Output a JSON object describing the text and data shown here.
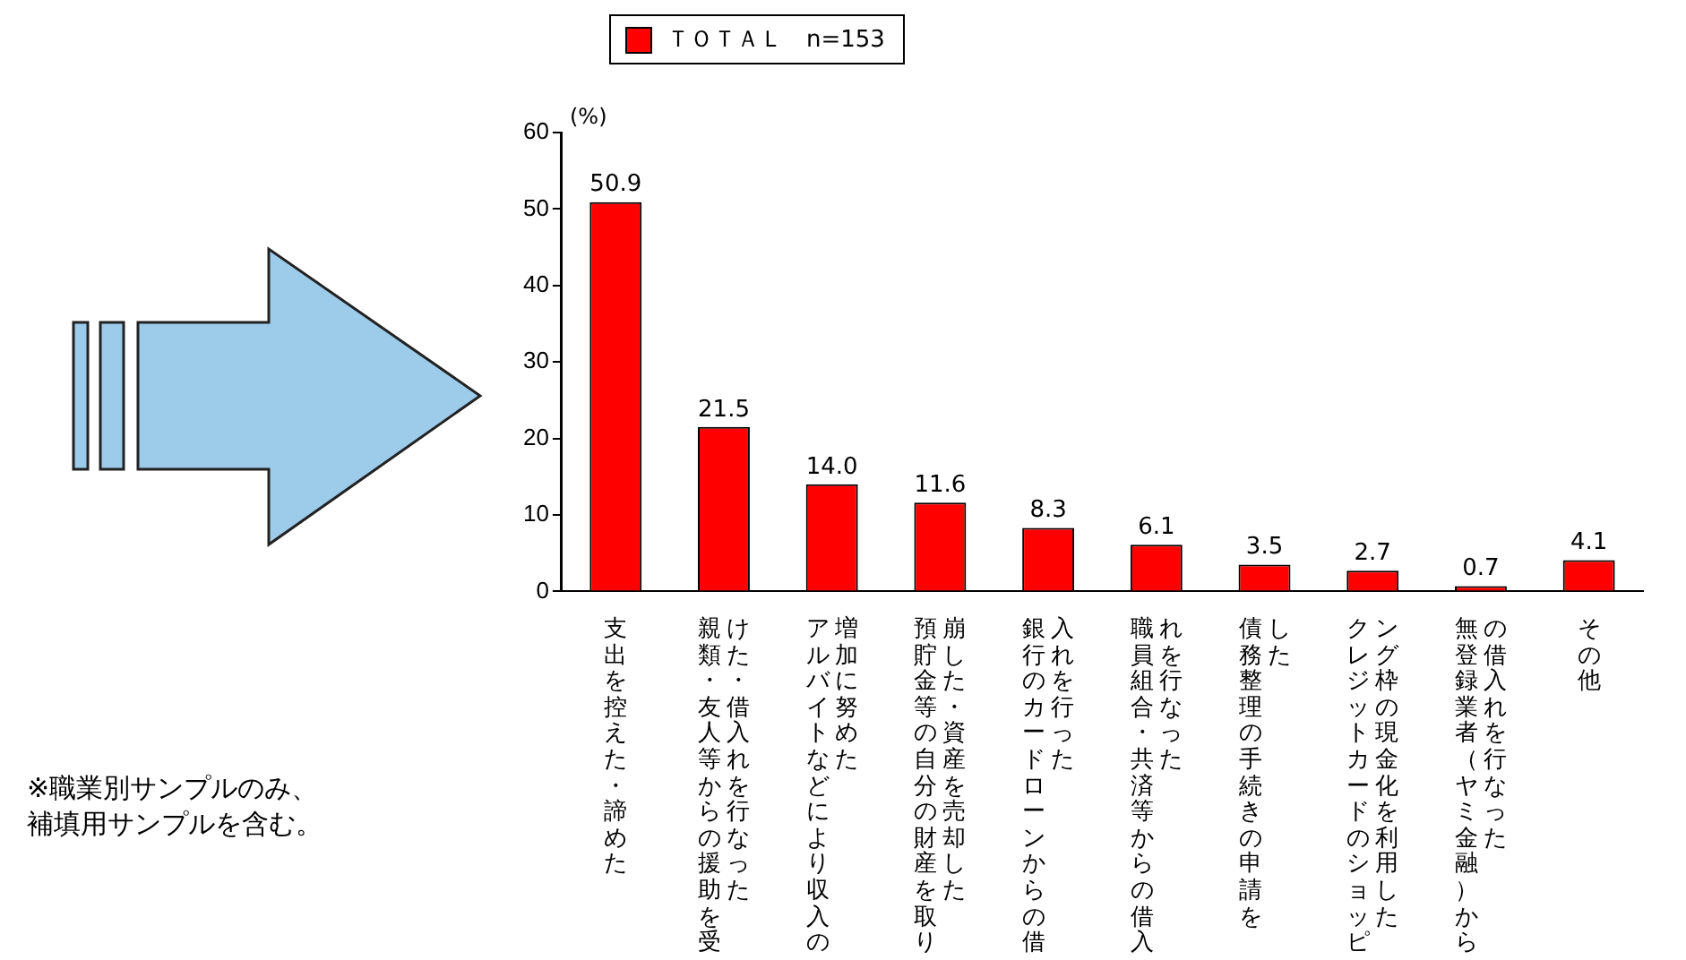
{
  "chart_data": {
    "type": "bar",
    "ylabel": "(%)",
    "categories": [
      "支出を控えた・諦めた",
      "親類・友人等からの援助を受けた・借入れを行なった",
      "アルバイトなどにより収入の増加に努めた",
      "預貯金等の自分の財産を取り崩した・資産を売却した",
      "銀行のカードローンからの借入れを行った",
      "職員組合・共済等からの借入れを行なった",
      "債務整理の手続きの申請をした",
      "クレジットカードのショッピング枠の現金化を利用した",
      "無登録業者（ヤミ金融）からの借入れを行なった",
      "その他"
    ],
    "series": [
      {
        "name": "ＴＯＴＡＬ　n=153",
        "color": "#ff0000",
        "values": [
          50.9,
          21.5,
          14.0,
          11.6,
          8.3,
          6.1,
          3.5,
          2.7,
          0.7,
          4.1
        ],
        "value_labels": [
          "50.9",
          "21.5",
          "14.0",
          "11.6",
          "8.3",
          "6.1",
          "3.5",
          "2.7",
          "0.7",
          "4.1"
        ]
      }
    ],
    "ylim": [
      0,
      60
    ],
    "yticks": [
      0,
      10,
      20,
      30,
      40,
      50,
      60
    ],
    "grid": false,
    "legend": "top",
    "annotations": [
      "※職業別サンプルのみ、補填用サンプルを含む。"
    ]
  }
}
